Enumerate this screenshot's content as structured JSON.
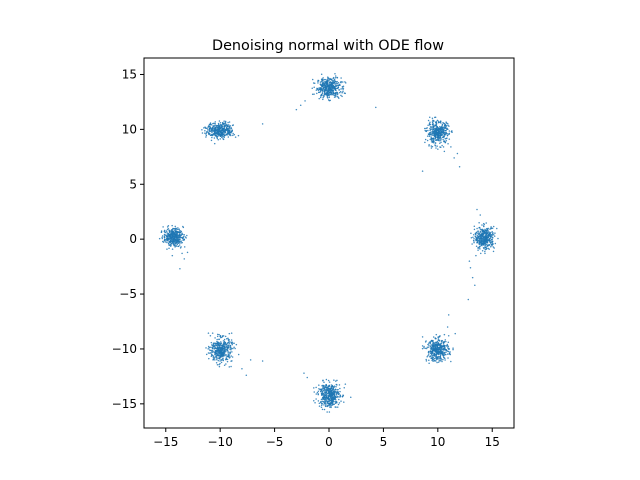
{
  "chart_data": {
    "type": "scatter",
    "title": "Denoising normal with ODE flow",
    "xlabel": "",
    "ylabel": "",
    "xlim": [
      -17,
      17
    ],
    "ylim": [
      -17.2,
      16.5
    ],
    "xticks": [
      -15,
      -10,
      -5,
      0,
      5,
      10,
      15
    ],
    "yticks": [
      -15,
      -10,
      -5,
      0,
      5,
      10,
      15
    ],
    "grid": false,
    "legend": "none",
    "point_color": "#1f77b4",
    "clusters": [
      {
        "cx": 0.0,
        "cy": 13.8,
        "sx": 0.55,
        "sy": 0.45,
        "n": 420
      },
      {
        "cx": 10.0,
        "cy": 9.7,
        "sx": 0.5,
        "sy": 0.5,
        "n": 400
      },
      {
        "cx": 14.3,
        "cy": 0.1,
        "sx": 0.45,
        "sy": 0.5,
        "n": 400
      },
      {
        "cx": 10.0,
        "cy": -10.1,
        "sx": 0.5,
        "sy": 0.5,
        "n": 400
      },
      {
        "cx": 0.0,
        "cy": -14.2,
        "sx": 0.5,
        "sy": 0.55,
        "n": 420
      },
      {
        "cx": -9.9,
        "cy": -10.1,
        "sx": 0.5,
        "sy": 0.55,
        "n": 400
      },
      {
        "cx": -14.3,
        "cy": 0.2,
        "sx": 0.45,
        "sy": 0.4,
        "n": 380
      },
      {
        "cx": -10.0,
        "cy": 9.9,
        "sx": 0.6,
        "sy": 0.35,
        "n": 400
      }
    ],
    "outliers": [
      [
        -2.2,
        12.6
      ],
      [
        -1.5,
        13.2
      ],
      [
        -3.0,
        11.8
      ],
      [
        -2.6,
        12.2
      ],
      [
        4.3,
        12.0
      ],
      [
        1.2,
        13.0
      ],
      [
        -0.9,
        12.8
      ],
      [
        8.6,
        6.2
      ],
      [
        9.2,
        8.6
      ],
      [
        10.6,
        8.0
      ],
      [
        11.5,
        7.4
      ],
      [
        11.8,
        7.8
      ],
      [
        12.0,
        6.6
      ],
      [
        11.2,
        8.4
      ],
      [
        10.0,
        8.2
      ],
      [
        9.5,
        8.9
      ],
      [
        13.6,
        2.7
      ],
      [
        13.9,
        2.2
      ],
      [
        13.5,
        -1.5
      ],
      [
        13.0,
        -2.6
      ],
      [
        13.2,
        -3.5
      ],
      [
        12.8,
        -5.5
      ],
      [
        13.4,
        -4.2
      ],
      [
        12.9,
        -2.0
      ],
      [
        13.7,
        -1.0
      ],
      [
        11.0,
        -6.9
      ],
      [
        11.6,
        -8.6
      ],
      [
        11.0,
        -8.8
      ],
      [
        8.6,
        -8.9
      ],
      [
        10.9,
        -8.0
      ],
      [
        9.2,
        -11.3
      ],
      [
        2.0,
        -14.4
      ],
      [
        1.5,
        -13.2
      ],
      [
        -2.3,
        -12.2
      ],
      [
        -2.0,
        -12.6
      ],
      [
        1.0,
        -13.6
      ],
      [
        0.8,
        -15.3
      ],
      [
        -6.1,
        -11.1
      ],
      [
        -7.6,
        -12.4
      ],
      [
        -8.0,
        -11.8
      ],
      [
        -7.2,
        -11.0
      ],
      [
        -10.9,
        -8.8
      ],
      [
        -9.0,
        -11.6
      ],
      [
        -8.3,
        -10.5
      ],
      [
        -13.3,
        -1.8
      ],
      [
        -13.5,
        -1.3
      ],
      [
        -13.0,
        -1.2
      ],
      [
        -14.4,
        -1.5
      ],
      [
        -13.7,
        -2.7
      ],
      [
        -15.1,
        0.8
      ],
      [
        -6.1,
        10.5
      ],
      [
        -10.5,
        8.7
      ],
      [
        -10.8,
        9.0
      ],
      [
        -8.8,
        10.4
      ],
      [
        -11.2,
        10.1
      ]
    ]
  }
}
